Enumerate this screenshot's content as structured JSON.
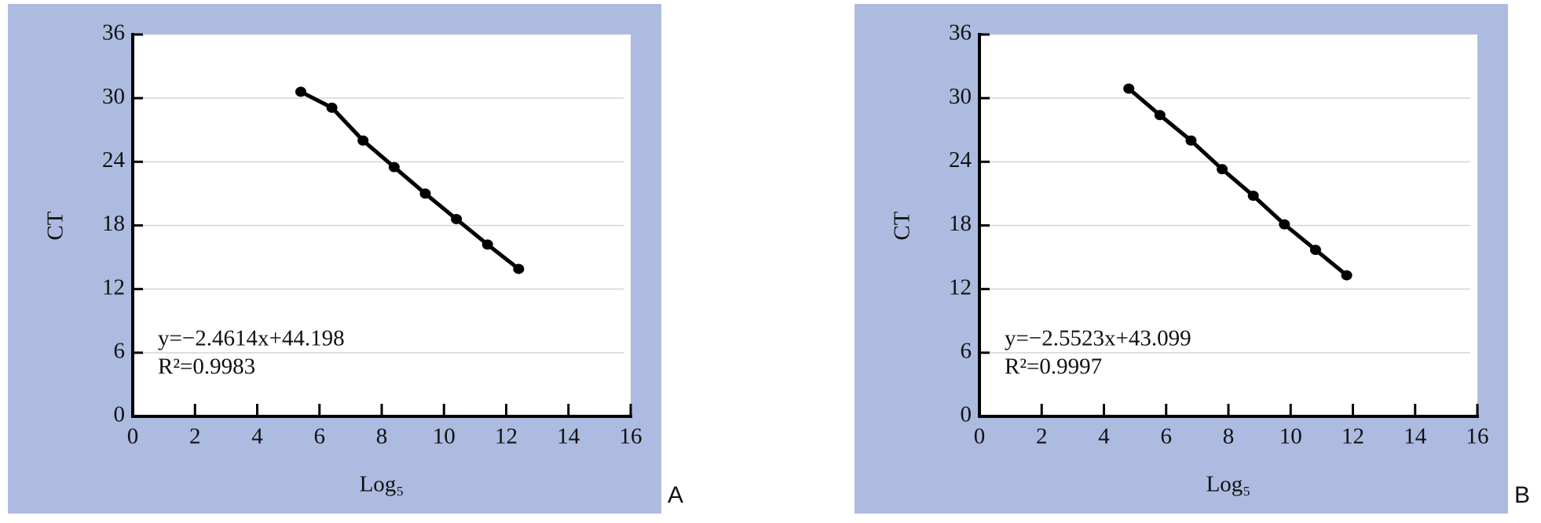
{
  "chart_data": [
    {
      "type": "scatter",
      "panel": "A",
      "xlabel": "Log₅",
      "ylabel": "CT",
      "annotations": [
        "y=−2.4614x+44.198",
        "R²=0.9983"
      ],
      "series": [
        {
          "color": "#000000",
          "x": [
            5.4,
            6.4,
            7.4,
            8.4,
            9.4,
            10.4,
            11.4,
            12.4
          ],
          "values": [
            30.6,
            29.1,
            26.0,
            23.5,
            21.0,
            18.6,
            16.2,
            13.9
          ]
        }
      ],
      "xlim": [
        0,
        16
      ],
      "xticks": [
        0,
        2,
        4,
        6,
        8,
        10,
        12,
        14,
        16
      ],
      "ylim": [
        0,
        36
      ],
      "yticks": [
        0,
        6,
        12,
        18,
        24,
        30,
        36
      ],
      "grid": true,
      "connect": true
    },
    {
      "type": "scatter",
      "panel": "B",
      "xlabel": "Log₅",
      "ylabel": "CT",
      "annotations": [
        "y=−2.5523x+43.099",
        "R²=0.9997"
      ],
      "series": [
        {
          "color": "#000000",
          "x": [
            4.8,
            5.8,
            6.8,
            7.8,
            8.8,
            9.8,
            10.8,
            11.8
          ],
          "values": [
            30.9,
            28.4,
            26.0,
            23.3,
            20.8,
            18.1,
            15.7,
            13.3
          ]
        }
      ],
      "xlim": [
        0,
        16
      ],
      "xticks": [
        0,
        2,
        4,
        6,
        8,
        10,
        12,
        14,
        16
      ],
      "ylim": [
        0,
        36
      ],
      "yticks": [
        0,
        6,
        12,
        18,
        24,
        30,
        36
      ],
      "grid": true,
      "connect": true
    }
  ]
}
